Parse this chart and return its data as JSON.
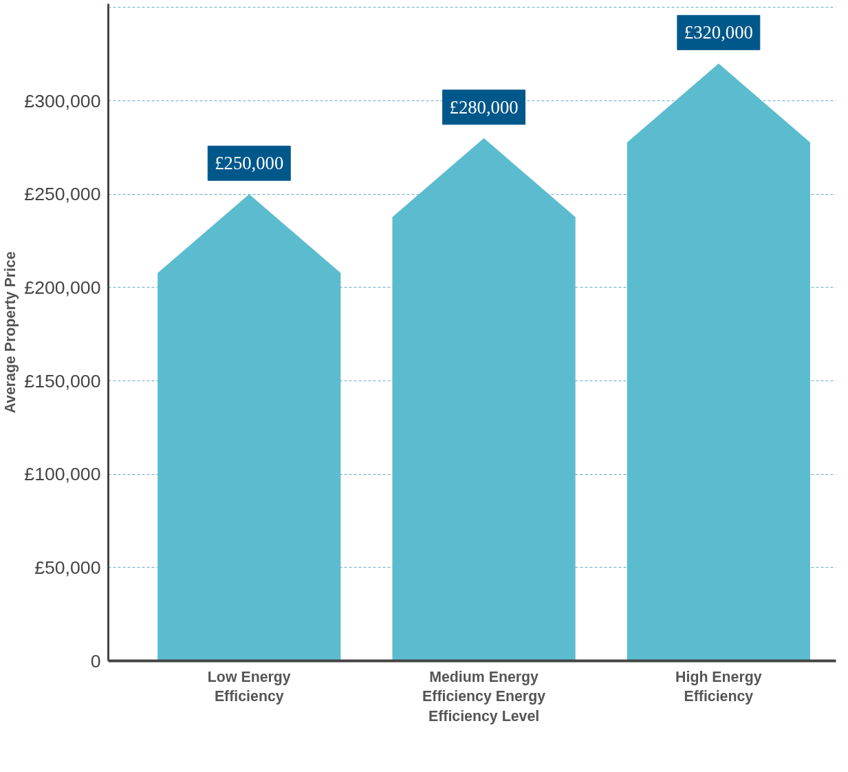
{
  "chart_data": {
    "type": "bar",
    "ylabel": "Average Property Price",
    "categories": [
      "Low Energy Efficiency",
      "Medium Energy Efficiency Energy Efficiency Level",
      "High Energy Efficiency"
    ],
    "values": [
      250000,
      280000,
      320000
    ],
    "value_labels": [
      "£250,000",
      "£280,000",
      "£320,000"
    ],
    "color": "#5bbccf",
    "ylim": [
      0,
      352000
    ],
    "yticks": [
      0,
      {
        "value": 50000,
        "label": "£50,000"
      },
      {
        "value": 100000,
        "label": "£100,000"
      },
      {
        "value": 150000,
        "label": "£150,000"
      },
      {
        "value": 200000,
        "label": "£200,000"
      },
      {
        "value": 250000,
        "label": "£250,000"
      },
      {
        "value": 300000,
        "label": "£300,000"
      },
      {
        "value": 350000,
        "label": null
      }
    ],
    "grid": "y"
  }
}
